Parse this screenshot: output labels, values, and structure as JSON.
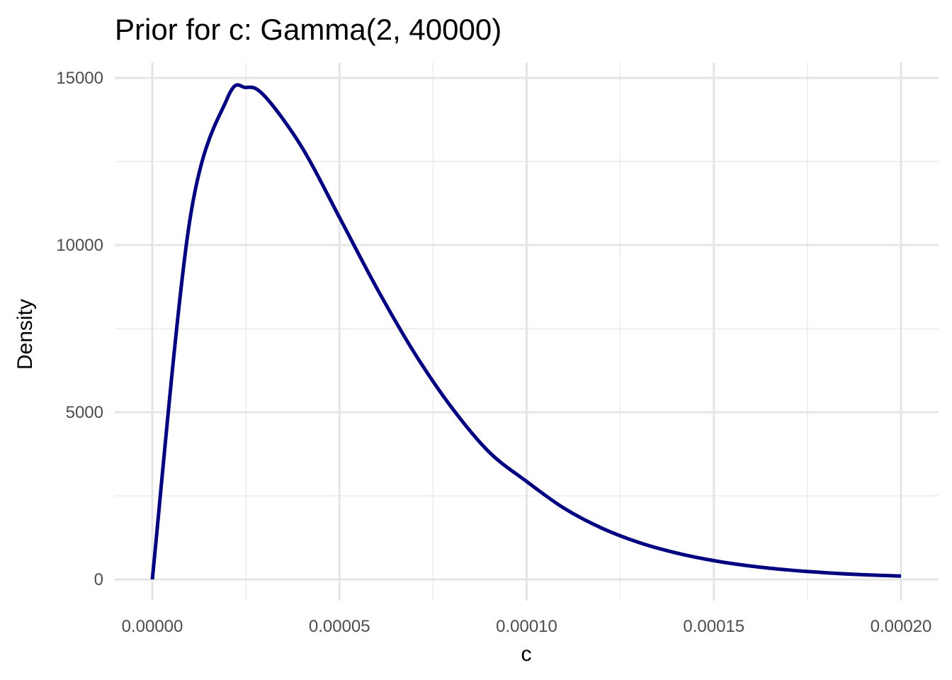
{
  "chart_data": {
    "type": "line",
    "title": "Prior for c: Gamma(2, 40000)",
    "xlabel": "c",
    "ylabel": "Density",
    "xlim": [
      0,
      0.0002
    ],
    "ylim": [
      0,
      15000
    ],
    "grid": true,
    "x_ticks": [
      0,
      5e-05,
      0.0001,
      0.00015,
      0.0002
    ],
    "x_tick_labels": [
      "0.00000",
      "0.00005",
      "0.00010",
      "0.00015",
      "0.00020"
    ],
    "y_ticks": [
      0,
      5000,
      10000,
      15000
    ],
    "y_tick_labels": [
      "0",
      "5000",
      "10000",
      "15000"
    ],
    "series": [
      {
        "color": "#000080",
        "x": [
          0,
          1e-05,
          2e-05,
          2.5e-05,
          3e-05,
          4e-05,
          5e-05,
          6e-05,
          7e-05,
          8e-05,
          9e-05,
          0.0001,
          0.00011,
          0.00012,
          0.00013,
          0.00014,
          0.00015,
          0.00016,
          0.00017,
          0.00018,
          0.00019,
          0.0002
        ],
        "y": [
          0,
          10725,
          14379,
          14715,
          14458,
          12921,
          10827,
          8707,
          6779,
          5137,
          3807,
          2930,
          2128,
          1537,
          1104,
          790,
          561,
          398,
          282,
          199,
          140,
          100
        ]
      }
    ]
  }
}
